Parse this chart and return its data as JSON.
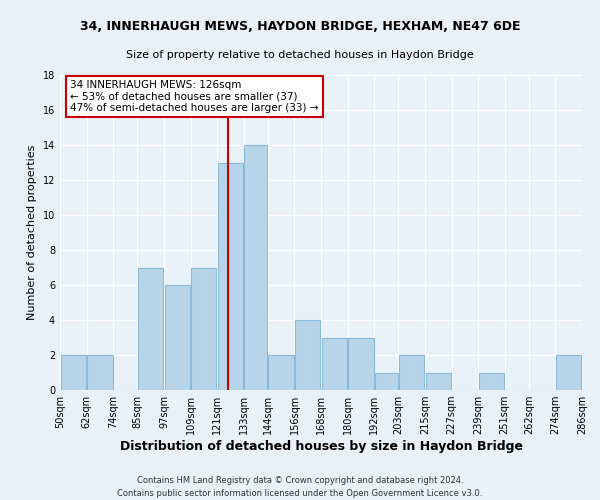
{
  "title_line1": "34, INNERHAUGH MEWS, HAYDON BRIDGE, HEXHAM, NE47 6DE",
  "title_line2": "Size of property relative to detached houses in Haydon Bridge",
  "xlabel": "Distribution of detached houses by size in Haydon Bridge",
  "ylabel": "Number of detached properties",
  "footer_line1": "Contains HM Land Registry data © Crown copyright and database right 2024.",
  "footer_line2": "Contains public sector information licensed under the Open Government Licence v3.0.",
  "bin_edges": [
    50,
    62,
    74,
    85,
    97,
    109,
    121,
    133,
    144,
    156,
    168,
    180,
    192,
    203,
    215,
    227,
    239,
    251,
    262,
    274,
    286
  ],
  "bar_heights": [
    2,
    2,
    0,
    7,
    6,
    7,
    13,
    14,
    2,
    4,
    3,
    3,
    1,
    2,
    1,
    0,
    1,
    0,
    0,
    2
  ],
  "bar_color": "#b8d4e8",
  "bar_edgecolor": "#89b8d8",
  "vline_x": 126,
  "vline_color": "#cc0000",
  "ylim": [
    0,
    18
  ],
  "yticks": [
    0,
    2,
    4,
    6,
    8,
    10,
    12,
    14,
    16,
    18
  ],
  "xtick_labels": [
    "50sqm",
    "62sqm",
    "74sqm",
    "85sqm",
    "97sqm",
    "109sqm",
    "121sqm",
    "133sqm",
    "144sqm",
    "156sqm",
    "168sqm",
    "180sqm",
    "192sqm",
    "203sqm",
    "215sqm",
    "227sqm",
    "239sqm",
    "251sqm",
    "262sqm",
    "274sqm",
    "286sqm"
  ],
  "annotation_line1": "34 INNERHAUGH MEWS: 126sqm",
  "annotation_line2": "← 53% of detached houses are smaller (37)",
  "annotation_line3": "47% of semi-detached houses are larger (33) →",
  "annotation_box_color": "#ffffff",
  "annotation_box_edgecolor": "#cc0000",
  "background_color": "#e8f0f8",
  "grid_color": "#ffffff",
  "title1_fontsize": 9,
  "title2_fontsize": 8,
  "ylabel_fontsize": 8,
  "xlabel_fontsize": 9,
  "tick_fontsize": 7,
  "annotation_fontsize": 7.5,
  "footer_fontsize": 6
}
